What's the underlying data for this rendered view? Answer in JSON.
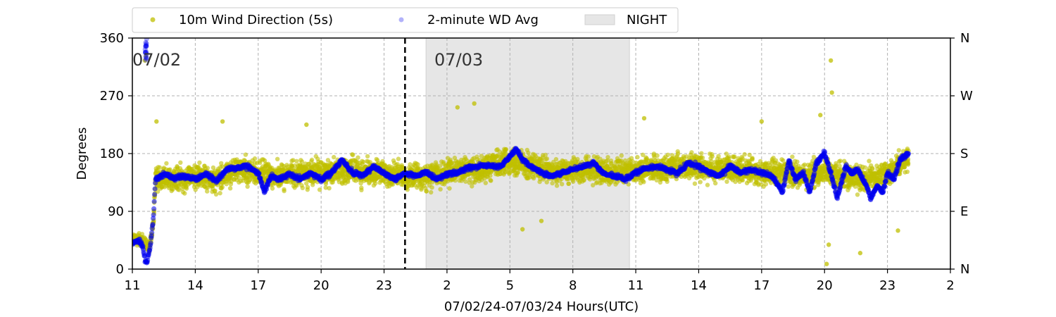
{
  "chart_data": {
    "type": "scatter",
    "title": "",
    "xlabel": "07/02/24-07/03/24  Hours(UTC)",
    "ylabel": "Degrees",
    "x_unit": "hours since 07/02 00:00 UTC",
    "xlim": [
      11,
      50
    ],
    "ylim": [
      0,
      360
    ],
    "x_ticks": [
      11,
      14,
      17,
      20,
      23,
      26,
      29,
      32,
      35,
      38,
      41,
      44,
      47,
      50
    ],
    "x_tick_labels": [
      "11",
      "14",
      "17",
      "20",
      "23",
      "2",
      "5",
      "8",
      "11",
      "14",
      "17",
      "20",
      "23",
      "2"
    ],
    "y_ticks": [
      0,
      90,
      180,
      270,
      360
    ],
    "y_tick_labels": [
      "0",
      "90",
      "180",
      "270",
      "360"
    ],
    "y2_tick_labels": [
      "N",
      "E",
      "S",
      "W",
      "N"
    ],
    "grid": true,
    "legend_position": "top",
    "date_labels": [
      {
        "text": "07/02",
        "x": 11,
        "y": 326
      },
      {
        "text": "07/03",
        "x": 25.4,
        "y": 326
      }
    ],
    "midnight_line_x": 24,
    "night_span": {
      "name": "NIGHT",
      "x_start": 25.0,
      "x_end": 34.7,
      "color": "#e6e6e6"
    },
    "series": [
      {
        "name": "10m Wind Direction (5s)",
        "color": "#bfbf00",
        "approx_points": [
          [
            11.0,
            45
          ],
          [
            11.3,
            48
          ],
          [
            11.6,
            40
          ],
          [
            11.8,
            30
          ],
          [
            12.0,
            70
          ],
          [
            12.1,
            140
          ],
          [
            12.5,
            145
          ],
          [
            13.0,
            140
          ],
          [
            14.0,
            145
          ],
          [
            15.0,
            140
          ],
          [
            16.0,
            155
          ],
          [
            17.0,
            150
          ],
          [
            18.0,
            145
          ],
          [
            19.0,
            150
          ],
          [
            20.0,
            150
          ],
          [
            21.0,
            155
          ],
          [
            22.0,
            150
          ],
          [
            23.0,
            150
          ],
          [
            24.0,
            145
          ],
          [
            25.0,
            145
          ],
          [
            26.0,
            150
          ],
          [
            27.0,
            155
          ],
          [
            28.0,
            160
          ],
          [
            29.0,
            170
          ],
          [
            30.0,
            160
          ],
          [
            31.0,
            150
          ],
          [
            32.0,
            155
          ],
          [
            33.0,
            155
          ],
          [
            34.0,
            150
          ],
          [
            35.0,
            155
          ],
          [
            36.0,
            155
          ],
          [
            37.0,
            160
          ],
          [
            38.0,
            160
          ],
          [
            39.0,
            155
          ],
          [
            40.0,
            155
          ],
          [
            41.0,
            150
          ],
          [
            42.0,
            150
          ],
          [
            43.0,
            145
          ],
          [
            44.0,
            150
          ],
          [
            45.0,
            145
          ],
          [
            46.0,
            140
          ],
          [
            47.0,
            150
          ],
          [
            48.0,
            175
          ]
        ],
        "outliers": [
          [
            11.6,
            325
          ],
          [
            11.65,
            332
          ],
          [
            12.15,
            230
          ],
          [
            15.3,
            230
          ],
          [
            19.3,
            225
          ],
          [
            26.5,
            252
          ],
          [
            27.3,
            258
          ],
          [
            29.6,
            62
          ],
          [
            30.5,
            75
          ],
          [
            35.4,
            235
          ],
          [
            41.0,
            230
          ],
          [
            43.8,
            240
          ],
          [
            44.3,
            325
          ],
          [
            44.35,
            275
          ],
          [
            44.2,
            38
          ],
          [
            44.1,
            8
          ],
          [
            45.7,
            25
          ],
          [
            47.5,
            60
          ]
        ]
      },
      {
        "name": "2-minute WD Avg",
        "color": "#0000ee",
        "points": [
          [
            11.0,
            40
          ],
          [
            11.3,
            45
          ],
          [
            11.5,
            35
          ],
          [
            11.6,
            15
          ],
          [
            11.7,
            10
          ],
          [
            11.85,
            35
          ],
          [
            12.0,
            80
          ],
          [
            12.1,
            140
          ],
          [
            12.5,
            148
          ],
          [
            13.0,
            142
          ],
          [
            13.5,
            145
          ],
          [
            14.0,
            140
          ],
          [
            14.5,
            148
          ],
          [
            15.0,
            138
          ],
          [
            15.5,
            155
          ],
          [
            16.0,
            158
          ],
          [
            16.5,
            160
          ],
          [
            17.0,
            150
          ],
          [
            17.3,
            120
          ],
          [
            17.6,
            145
          ],
          [
            18.0,
            140
          ],
          [
            18.5,
            148
          ],
          [
            19.0,
            140
          ],
          [
            19.5,
            150
          ],
          [
            20.0,
            140
          ],
          [
            20.5,
            150
          ],
          [
            21.0,
            170
          ],
          [
            21.5,
            150
          ],
          [
            22.0,
            145
          ],
          [
            22.5,
            160
          ],
          [
            23.0,
            150
          ],
          [
            23.5,
            140
          ],
          [
            24.0,
            150
          ],
          [
            24.5,
            145
          ],
          [
            25.0,
            150
          ],
          [
            25.5,
            140
          ],
          [
            26.0,
            148
          ],
          [
            26.5,
            150
          ],
          [
            27.0,
            158
          ],
          [
            27.5,
            160
          ],
          [
            28.0,
            162
          ],
          [
            28.5,
            158
          ],
          [
            29.0,
            175
          ],
          [
            29.3,
            188
          ],
          [
            29.6,
            170
          ],
          [
            30.0,
            160
          ],
          [
            30.5,
            150
          ],
          [
            31.0,
            145
          ],
          [
            31.5,
            150
          ],
          [
            32.0,
            155
          ],
          [
            32.5,
            160
          ],
          [
            33.0,
            165
          ],
          [
            33.5,
            148
          ],
          [
            34.0,
            145
          ],
          [
            34.5,
            140
          ],
          [
            35.0,
            150
          ],
          [
            35.5,
            158
          ],
          [
            36.0,
            160
          ],
          [
            36.5,
            155
          ],
          [
            37.0,
            150
          ],
          [
            37.5,
            165
          ],
          [
            38.0,
            160
          ],
          [
            38.5,
            150
          ],
          [
            39.0,
            145
          ],
          [
            39.5,
            160
          ],
          [
            40.0,
            150
          ],
          [
            40.5,
            155
          ],
          [
            41.0,
            150
          ],
          [
            41.5,
            145
          ],
          [
            42.0,
            120
          ],
          [
            42.3,
            170
          ],
          [
            42.6,
            140
          ],
          [
            43.0,
            150
          ],
          [
            43.3,
            120
          ],
          [
            43.6,
            165
          ],
          [
            44.0,
            180
          ],
          [
            44.3,
            150
          ],
          [
            44.6,
            110
          ],
          [
            45.0,
            160
          ],
          [
            45.3,
            150
          ],
          [
            45.6,
            155
          ],
          [
            46.0,
            130
          ],
          [
            46.2,
            110
          ],
          [
            46.5,
            130
          ],
          [
            46.8,
            120
          ],
          [
            47.0,
            150
          ],
          [
            47.3,
            140
          ],
          [
            47.6,
            170
          ],
          [
            48.0,
            180
          ]
        ]
      },
      {
        "name": "NIGHT",
        "color": "#e6e6e6"
      }
    ]
  }
}
